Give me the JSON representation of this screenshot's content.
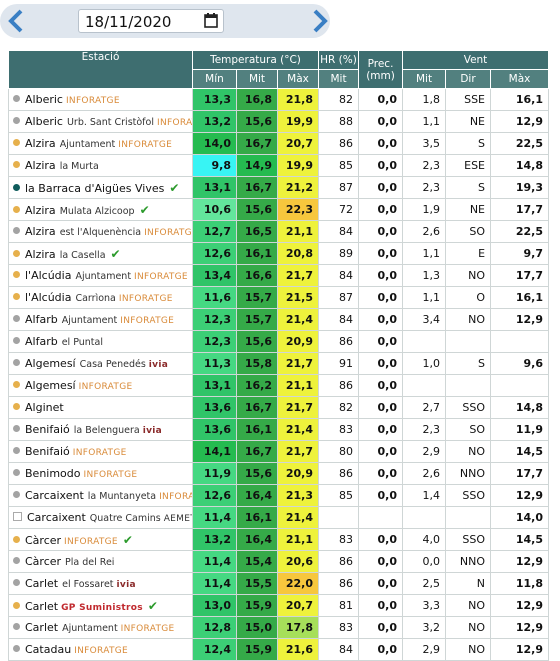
{
  "nav": {
    "date": "18/11/2020"
  },
  "table": {
    "group_headers": [
      "Estació",
      "Temperatura (°C)",
      "HR (%)",
      "Prec. (mm)",
      "Vent"
    ],
    "sub_headers": [
      "Mín",
      "Mit",
      "Màx",
      "Mit",
      "Mit",
      "Dir",
      "Màx"
    ],
    "rows": [
      {
        "dot": "#a3a3a3",
        "name": "Alberic",
        "source": "INFORATGE",
        "cells": [
          "13,3",
          "16,8",
          "21,8",
          "82",
          "0,0",
          "1,8",
          "SSE",
          "16,1"
        ]
      },
      {
        "dot": "#a3a3a3",
        "name": "Alberic",
        "place": "Urb. Sant Cristòfol",
        "source": "INFORATGE",
        "cells": [
          "13,2",
          "15,6",
          "19,9",
          "88",
          "0,0",
          "1,1",
          "NE",
          "12,9"
        ]
      },
      {
        "dot": "#e6b04c",
        "name": "Alzira",
        "place": "Ajuntament",
        "source": "INFORATGE",
        "cells": [
          "14,0",
          "16,7",
          "20,7",
          "86",
          "0,0",
          "3,5",
          "S",
          "22,5"
        ]
      },
      {
        "dot": "#e6b04c",
        "name": "Alzira",
        "place": "la Murta",
        "cells": [
          "9,8",
          "14,9",
          "19,9",
          "85",
          "0,0",
          "2,3",
          "ESE",
          "14,8"
        ]
      },
      {
        "dot": "#0f5c5c",
        "name": "la Barraca d'Aigües Vives",
        "verified": true,
        "cells": [
          "13,1",
          "16,7",
          "21,2",
          "87",
          "0,0",
          "2,3",
          "S",
          "19,3"
        ]
      },
      {
        "dot": "#e6b04c",
        "name": "Alzira",
        "place": "Mulata Alzicoop",
        "verified": true,
        "cells": [
          "10,6",
          "15,6",
          "22,3",
          "72",
          "0,0",
          "1,9",
          "NE",
          "17,7"
        ]
      },
      {
        "dot": "#a3a3a3",
        "name": "Alzira",
        "place": "est l'Alquenència",
        "source": "INFORATGE",
        "cells": [
          "12,7",
          "16,5",
          "21,1",
          "84",
          "0,0",
          "2,6",
          "SO",
          "22,5"
        ]
      },
      {
        "dot": "#e6b04c",
        "name": "Alzira",
        "place": "la Casella",
        "verified": true,
        "cells": [
          "12,6",
          "16,1",
          "20,8",
          "89",
          "0,0",
          "1,1",
          "E",
          "9,7"
        ]
      },
      {
        "dot": "#e6b04c",
        "name": "l'Alcúdia",
        "place": "Ajuntament",
        "source": "INFORATGE",
        "cells": [
          "13,4",
          "16,6",
          "21,7",
          "84",
          "0,0",
          "1,3",
          "NO",
          "17,7"
        ]
      },
      {
        "dot": "#e6b04c",
        "name": "l'Alcúdia",
        "place": "Carrìona",
        "source": "INFORATGE",
        "cells": [
          "11,6",
          "15,7",
          "21,5",
          "87",
          "0,0",
          "1,1",
          "O",
          "16,1"
        ]
      },
      {
        "dot": "#a3a3a3",
        "name": "Alfarb",
        "place": "Ajuntament",
        "source": "INFORATGE",
        "cells": [
          "12,3",
          "15,7",
          "21,4",
          "84",
          "0,0",
          "3,4",
          "NO",
          "12,9"
        ]
      },
      {
        "dot": "#a3a3a3",
        "name": "Alfarb",
        "place": "el Puntal",
        "cells": [
          "12,3",
          "15,6",
          "20,9",
          "86",
          "0,0",
          null,
          null,
          null
        ]
      },
      {
        "dot": "#a3a3a3",
        "name": "Algemesí",
        "place": "Casa Penedés",
        "source": "ivia",
        "cells": [
          "11,3",
          "15,8",
          "21,7",
          "91",
          "0,0",
          "1,0",
          "S",
          "9,6"
        ]
      },
      {
        "dot": "#e6b04c",
        "name": "Algemesí",
        "source": "INFORATGE",
        "cells": [
          "13,1",
          "16,2",
          "21,1",
          "86",
          "0,0",
          null,
          null,
          null
        ]
      },
      {
        "dot": "#e6b04c",
        "name": "Alginet",
        "cells": [
          "13,6",
          "16,7",
          "21,7",
          "82",
          "0,0",
          "2,7",
          "SSO",
          "14,8"
        ]
      },
      {
        "dot": "#a3a3a3",
        "name": "Benifaió",
        "place": "la Belenguera",
        "source": "ivia",
        "cells": [
          "13,6",
          "16,1",
          "21,4",
          "83",
          "0,0",
          "2,3",
          "SO",
          "11,9"
        ]
      },
      {
        "dot": "#a3a3a3",
        "name": "Benifaió",
        "source": "INFORATGE",
        "cells": [
          "14,1",
          "16,7",
          "21,7",
          "80",
          "0,0",
          "2,9",
          "NO",
          "14,5"
        ]
      },
      {
        "dot": "#a3a3a3",
        "name": "Benimodo",
        "source": "INFORATGE",
        "cells": [
          "11,9",
          "15,6",
          "20,9",
          "86",
          "0,0",
          "2,6",
          "NNO",
          "17,7"
        ]
      },
      {
        "dot": "#a3a3a3",
        "name": "Carcaixent",
        "place": "la Muntanyeta",
        "source": "INFORATGE",
        "cells": [
          "12,6",
          "16,4",
          "21,3",
          "85",
          "0,0",
          "1,4",
          "SSO",
          "12,9"
        ]
      },
      {
        "name": "Carcaixent",
        "place": "Quatre Camins",
        "source": "AEMET",
        "cells": [
          "11,4",
          "16,1",
          "21,4",
          null,
          null,
          null,
          null,
          "14,0"
        ]
      },
      {
        "dot": "#e6b04c",
        "name": "Càrcer",
        "source": "INFORATGE",
        "verified": true,
        "cells": [
          "13,2",
          "16,4",
          "21,1",
          "83",
          "0,0",
          "4,0",
          "SSO",
          "14,5"
        ]
      },
      {
        "dot": "#a3a3a3",
        "name": "Càrcer",
        "place": "Pla del Rei",
        "cells": [
          "11,4",
          "15,4",
          "20,6",
          "86",
          "0,0",
          "0,0",
          "NNO",
          "12,9"
        ]
      },
      {
        "dot": "#a3a3a3",
        "name": "Carlet",
        "place": "el Fossaret",
        "source": "ivia",
        "cells": [
          "11,4",
          "15,5",
          "22,0",
          "86",
          "0,0",
          "2,5",
          "N",
          "11,8"
        ]
      },
      {
        "dot": "#e6b04c",
        "name": "Carlet",
        "source": "GP Suministros",
        "verified": true,
        "cells": [
          "13,0",
          "15,9",
          "20,7",
          "81",
          "0,0",
          "3,3",
          "NO",
          "12,9"
        ]
      },
      {
        "dot": "#a3a3a3",
        "name": "Carlet",
        "place": "Ajuntament",
        "source": "INFORATGE",
        "cells": [
          "12,8",
          "15,0",
          "17,8",
          "83",
          "0,0",
          "3,2",
          "NO",
          "12,9"
        ]
      },
      {
        "dot": "#a3a3a3",
        "name": "Catadau",
        "source": "INFORATGE",
        "cells": [
          "12,4",
          "15,9",
          "21,6",
          "84",
          "0,0",
          "2,9",
          "NO",
          "12,9"
        ]
      }
    ]
  }
}
